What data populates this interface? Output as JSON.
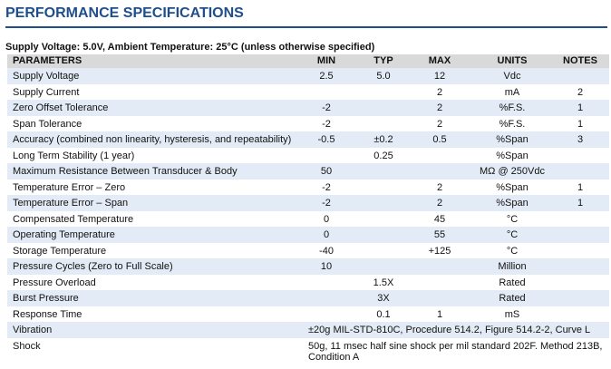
{
  "header": {
    "title": "PERFORMANCE SPECIFICATIONS",
    "conditions": "Supply Voltage: 5.0V, Ambient Temperature: 25°C (unless otherwise specified)"
  },
  "table": {
    "columns": {
      "parameter": "PARAMETERS",
      "min": "MIN",
      "typ": "TYP",
      "max": "MAX",
      "units": "UNITS",
      "notes": "NOTES"
    },
    "rows": [
      {
        "parameter": "Supply Voltage",
        "min": "2.5",
        "typ": "5.0",
        "max": "12",
        "units": "Vdc"
      },
      {
        "parameter": "Supply Current",
        "max": "2",
        "units": "mA",
        "notes": "2"
      },
      {
        "parameter": "Zero Offset Tolerance",
        "min": "-2",
        "max": "2",
        "units": "%F.S.",
        "notes": "1"
      },
      {
        "parameter": "Span Tolerance",
        "min": "-2",
        "max": "2",
        "units": "%F.S.",
        "notes": "1"
      },
      {
        "parameter": "Accuracy (combined non linearity, hysteresis, and repeatability)",
        "min": "-0.5",
        "typ": "±0.2",
        "max": "0.5",
        "units": "%Span",
        "notes": "3"
      },
      {
        "parameter": "Long Term Stability (1 year)",
        "typ": "0.25",
        "units": "%Span"
      },
      {
        "parameter": "Maximum Resistance Between Transducer & Body",
        "min": "50",
        "units": "MΩ @ 250Vdc"
      },
      {
        "parameter": "Temperature Error – Zero",
        "min": "-2",
        "max": "2",
        "units": "%Span",
        "notes": "1"
      },
      {
        "parameter": "Temperature Error – Span",
        "min": "-2",
        "max": "2",
        "units": "%Span",
        "notes": "1"
      },
      {
        "parameter": "Compensated Temperature",
        "min": "0",
        "max": "45",
        "units": "°C"
      },
      {
        "parameter": "Operating Temperature",
        "min": "0",
        "max": "55",
        "units": "°C"
      },
      {
        "parameter": "Storage Temperature",
        "min": "-40",
        "max": "+125",
        "units": "°C"
      },
      {
        "parameter": "Pressure Cycles (Zero to Full Scale)",
        "min": "10",
        "units": "Million"
      },
      {
        "parameter": "Pressure Overload",
        "typ": "1.5X",
        "units": "Rated"
      },
      {
        "parameter": "Burst Pressure",
        "typ": "3X",
        "units": "Rated"
      },
      {
        "parameter": "Response Time",
        "typ": "0.1",
        "max": "1",
        "units": "mS"
      },
      {
        "parameter": "Vibration",
        "spec": "±20g MIL-STD-810C, Procedure 514.2, Figure 514.2-2, Curve L"
      },
      {
        "parameter": "Shock",
        "spec": "50g, 11 msec half sine shock per mil standard 202F. Method 213B, Condition A"
      }
    ]
  }
}
